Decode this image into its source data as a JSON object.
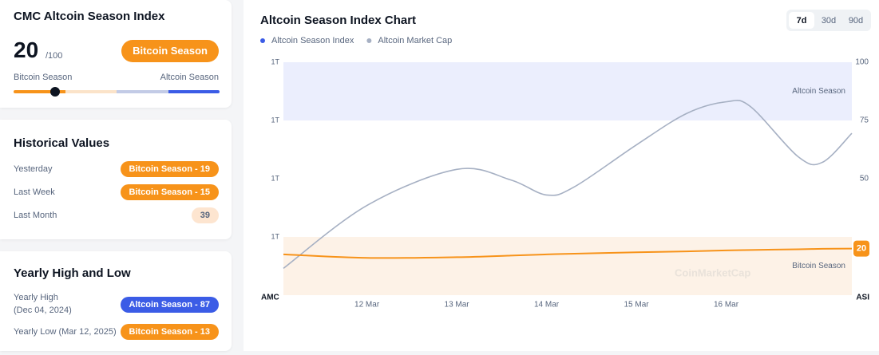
{
  "index_card": {
    "title": "CMC Altcoin Season Index",
    "score": "20",
    "max_label": "/100",
    "badge": "Bitcoin Season",
    "badge_color": "#f7931a",
    "scale_left": "Bitcoin Season",
    "scale_right": "Altcoin Season"
  },
  "historical": {
    "title": "Historical Values",
    "rows": [
      {
        "label": "Yesterday",
        "value": "Bitcoin Season - 19",
        "color": "#f7931a"
      },
      {
        "label": "Last Week",
        "value": "Bitcoin Season - 15",
        "color": "#f7931a"
      },
      {
        "label": "Last Month",
        "value": "39",
        "color": "#fde5d0"
      }
    ]
  },
  "yearly": {
    "title": "Yearly High and Low",
    "rows": [
      {
        "label": "Yearly High",
        "date": "(Dec 04, 2024)",
        "value": "Altcoin Season - 87",
        "color": "#3b5ce6"
      },
      {
        "label": "Yearly Low (Mar 12, 2025)",
        "value": "Bitcoin Season - 13",
        "color": "#f7931a"
      }
    ]
  },
  "chart_data": {
    "type": "line",
    "title": "Altcoin Season Index Chart",
    "range_buttons": [
      "7d",
      "30d",
      "90d"
    ],
    "active_range": "7d",
    "watermark": "CoinMarketCap",
    "xticks": [
      {
        "value": 12,
        "label": "12 Mar"
      },
      {
        "value": 13,
        "label": "13 Mar"
      },
      {
        "value": 14,
        "label": "14 Mar"
      },
      {
        "value": 15,
        "label": "15 Mar"
      },
      {
        "value": 16,
        "label": "16 Mar"
      }
    ],
    "xlim": [
      11.07,
      17.4
    ],
    "x": [
      11.07,
      12,
      13,
      13.6,
      14,
      14.31,
      15,
      15.56,
      16,
      16.27,
      16.8,
      17.07,
      17.4
    ],
    "ylabel": "AMC",
    "y2label": "ASI",
    "ylim": [
      950000000000,
      1150000000000
    ],
    "yticks": [
      {
        "value": 1150000000000,
        "label": "1T"
      },
      {
        "value": 1100000000000,
        "label": "1T"
      },
      {
        "value": 1050000000000,
        "label": "1T"
      },
      {
        "value": 1000000000000,
        "label": "1T"
      }
    ],
    "y2lim": [
      0,
      100
    ],
    "y2ticks": [
      100,
      75,
      50
    ],
    "bands": [
      {
        "label": "Altcoin Season",
        "from": 75,
        "to": 100,
        "color": "#ebeefd"
      },
      {
        "label": "Bitcoin Season",
        "from": 0,
        "to": 25,
        "color": "#fdf2e7"
      }
    ],
    "series": [
      {
        "name": "Altcoin Season Index",
        "color": "#f7931a",
        "legend_color": "#3b5ce6",
        "axis": "y2",
        "values": [
          17.5,
          16,
          16.3,
          17,
          17.5,
          17.8,
          18.4,
          18.8,
          19.2,
          19.4,
          19.7,
          19.9,
          20
        ]
      },
      {
        "name": "Altcoin Market Cap",
        "color": "#a6b0c3",
        "values": [
          973000000000,
          1027000000000,
          1058000000000,
          1049000000000,
          1036000000000,
          1043000000000,
          1079000000000,
          1106000000000,
          1116000000000,
          1112000000000,
          1069000000000,
          1064000000000,
          1089000000000
        ]
      }
    ]
  }
}
